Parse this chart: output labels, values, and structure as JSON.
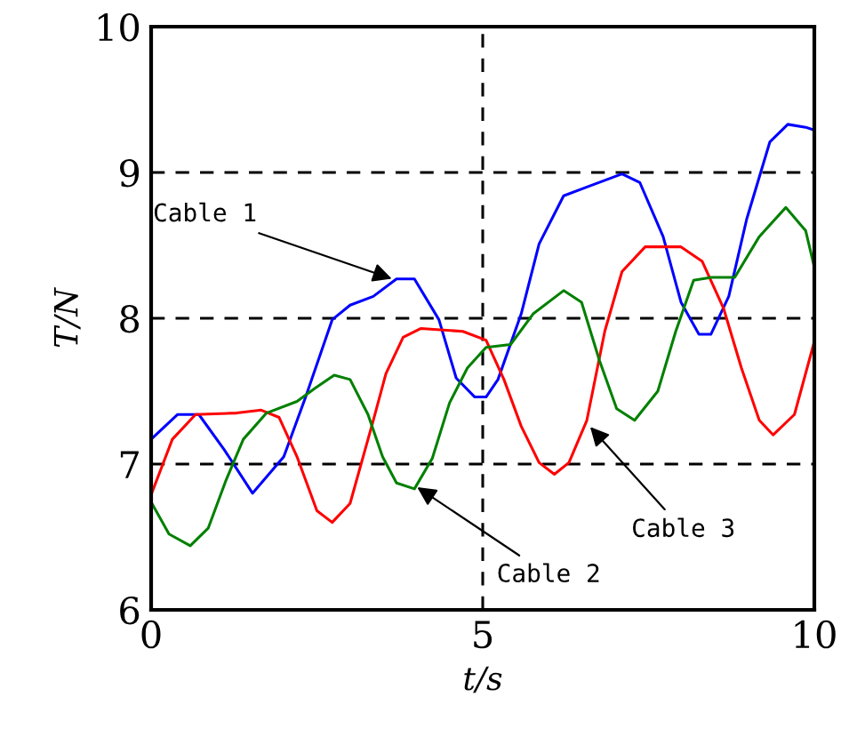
{
  "chart_data": {
    "type": "line",
    "xlabel": "t/s",
    "ylabel": "T/N",
    "xlim": [
      0,
      10
    ],
    "ylim": [
      6,
      10
    ],
    "xticks": [
      0,
      5,
      10
    ],
    "yticks": [
      6,
      7,
      8,
      9,
      10
    ],
    "grid": true,
    "marker": "none",
    "line_style": "solid",
    "series": [
      {
        "color": "#0000ff",
        "x": [
          0,
          0.4,
          0.72,
          1.1,
          1.53,
          2.0,
          2.33,
          2.73,
          3.0,
          3.35,
          3.7,
          3.97,
          4.34,
          4.6,
          4.88,
          5.05,
          5.23,
          5.58,
          5.85,
          6.22,
          6.57,
          7.1,
          7.37,
          7.72,
          7.99,
          8.26,
          8.44,
          8.71,
          8.98,
          9.33,
          9.6,
          9.87,
          10
        ],
        "values": [
          7.17,
          7.34,
          7.34,
          7.1,
          6.8,
          7.05,
          7.46,
          7.99,
          8.09,
          8.15,
          8.27,
          8.27,
          7.99,
          7.59,
          7.46,
          7.46,
          7.58,
          8.03,
          8.51,
          8.84,
          8.9,
          8.99,
          8.93,
          8.56,
          8.11,
          7.89,
          7.89,
          8.15,
          8.68,
          9.21,
          9.33,
          9.31,
          9.29
        ]
      },
      {
        "color": "#ff0000",
        "x": [
          0,
          0.32,
          0.67,
          1.29,
          1.66,
          1.93,
          2.2,
          2.5,
          2.73,
          3.0,
          3.35,
          3.54,
          3.8,
          4.07,
          4.7,
          5.05,
          5.32,
          5.58,
          5.85,
          6.08,
          6.3,
          6.57,
          6.84,
          7.1,
          7.45,
          7.99,
          8.31,
          8.63,
          8.9,
          9.17,
          9.38,
          9.7,
          10
        ],
        "values": [
          6.79,
          7.17,
          7.34,
          7.35,
          7.37,
          7.32,
          7.05,
          6.68,
          6.6,
          6.73,
          7.3,
          7.62,
          7.87,
          7.93,
          7.91,
          7.85,
          7.58,
          7.26,
          7.01,
          6.93,
          7.01,
          7.3,
          7.91,
          8.32,
          8.49,
          8.49,
          8.39,
          8.07,
          7.66,
          7.3,
          7.2,
          7.34,
          7.84
        ]
      },
      {
        "color": "#008000",
        "x": [
          0,
          0.27,
          0.59,
          0.86,
          1.13,
          1.39,
          1.74,
          2.2,
          2.47,
          2.76,
          3.0,
          3.27,
          3.49,
          3.7,
          3.97,
          4.24,
          4.5,
          4.77,
          5.05,
          5.42,
          5.76,
          6.22,
          6.49,
          6.76,
          7.02,
          7.29,
          7.64,
          7.91,
          8.18,
          8.45,
          8.8,
          9.17,
          9.57,
          9.87,
          10
        ],
        "values": [
          6.74,
          6.52,
          6.44,
          6.56,
          6.89,
          7.17,
          7.35,
          7.43,
          7.52,
          7.61,
          7.58,
          7.34,
          7.05,
          6.87,
          6.83,
          7.04,
          7.42,
          7.66,
          7.8,
          7.82,
          8.03,
          8.19,
          8.11,
          7.71,
          7.38,
          7.3,
          7.5,
          7.91,
          8.26,
          8.28,
          8.28,
          8.56,
          8.76,
          8.6,
          8.35
        ]
      }
    ],
    "annotations": [
      {
        "text": "Cable 1",
        "x": 3.7,
        "y": 8.26
      },
      {
        "text": "Cable 2",
        "x": 3.95,
        "y": 6.86
      },
      {
        "text": "Cable 3",
        "x": 6.57,
        "y": 7.28
      }
    ]
  }
}
